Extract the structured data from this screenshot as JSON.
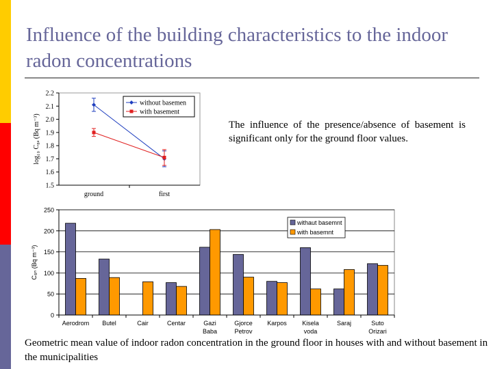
{
  "slide": {
    "title": "Influence of the building characteristics to the indoor radon concentrations",
    "body_text": "The influence of the presence/absence of basement is significant only for the ground floor values.",
    "caption": "Geometric mean value of indoor radon  concentration in the ground floor  in houses with and without basement in the municipalities",
    "colors": {
      "title": "#666699",
      "strip_yellow": "#ffcc00",
      "strip_red": "#ff0000",
      "strip_blue": "#666699"
    }
  },
  "chart_data": [
    {
      "type": "line",
      "categories": [
        "ground",
        "first"
      ],
      "ylabel": "log₁₀ C₈ₐ (Bq m⁻³)",
      "ylim": [
        1.5,
        2.2
      ],
      "yticks": [
        "1.5",
        "1.6",
        "1.7",
        "1.8",
        "1.9",
        "2.0",
        "2.1",
        "2.2"
      ],
      "legend_position": "top-right",
      "grid": false,
      "series": [
        {
          "name": "without basemen",
          "values": [
            2.11,
            1.7
          ],
          "error": [
            0.05,
            0.06
          ],
          "color": "#1f3fbf",
          "marker": "diamond"
        },
        {
          "name": "with basement",
          "values": [
            1.9,
            1.71
          ],
          "error": [
            0.03,
            0.06
          ],
          "color": "#e02020",
          "marker": "square"
        }
      ]
    },
    {
      "type": "bar",
      "categories": [
        "Aerodrom",
        "Butel",
        "Cair",
        "Centar",
        "Gazi Baba",
        "Gjorce Petrov",
        "Karpos",
        "Kisela voda",
        "Saraj",
        "Suto Orizari"
      ],
      "ylabel": "C₈ₙ (Bq m⁻³)",
      "ylim": [
        0,
        250
      ],
      "yticks": [
        "0",
        "50",
        "100",
        "150",
        "200",
        "250"
      ],
      "legend_position": "top-right",
      "grid": true,
      "series": [
        {
          "name": "withaut basemnt",
          "values": [
            218,
            133,
            null,
            77,
            161,
            144,
            80,
            160,
            62,
            122
          ],
          "color": "#666699"
        },
        {
          "name": "with basemnt",
          "values": [
            87,
            89,
            79,
            68,
            203,
            90,
            77,
            62,
            108,
            118
          ],
          "color": "#ff9900"
        }
      ]
    }
  ]
}
